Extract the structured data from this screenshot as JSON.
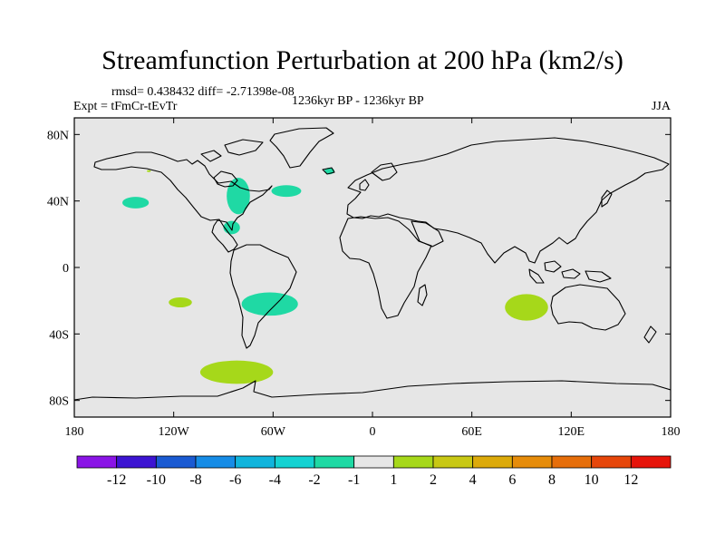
{
  "title": "Streamfunction Perturbation at 200 hPa (km2/s)",
  "stats": "rmsd= 0.438432 diff= -2.71398e-08",
  "experiment": "Expt = tFmCr-tEvTr",
  "period": "1236kyr BP - 1236kyr BP",
  "season": "JJA",
  "colors": {
    "ocean_land_bg": "#e6e6e6",
    "coastline": "#000000",
    "neg_small": "#1fd9a4",
    "pos_small": "#a6d81a"
  },
  "chart_data": {
    "type": "map-contour",
    "projection": "cylindrical-equidistant",
    "lon_range": [
      -180,
      180
    ],
    "lat_range": [
      -90,
      90
    ],
    "x_ticks": [
      {
        "lon": -180,
        "label": "180"
      },
      {
        "lon": -120,
        "label": "120W"
      },
      {
        "lon": -60,
        "label": "60W"
      },
      {
        "lon": 0,
        "label": "0"
      },
      {
        "lon": 60,
        "label": "60E"
      },
      {
        "lon": 120,
        "label": "120E"
      },
      {
        "lon": 180,
        "label": "180"
      }
    ],
    "y_ticks": [
      {
        "lat": 80,
        "label": "80N"
      },
      {
        "lat": 40,
        "label": "40N"
      },
      {
        "lat": 0,
        "label": "0"
      },
      {
        "lat": -40,
        "label": "40S"
      },
      {
        "lat": -80,
        "label": "80S"
      }
    ],
    "colorbar": {
      "colors": [
        "#8a14e6",
        "#3c14d2",
        "#1a5ad2",
        "#168ce6",
        "#10b4dc",
        "#14d2d2",
        "#1fd9a4",
        "#e6e6e6",
        "#a6d81a",
        "#c8c814",
        "#dcaa0a",
        "#e68c0a",
        "#e66e0a",
        "#e6460a",
        "#e6140a"
      ],
      "labels": [
        "-12",
        "-10",
        "-8",
        "-6",
        "-4",
        "-2",
        "-1",
        "1",
        "2",
        "4",
        "6",
        "8",
        "10",
        "12"
      ]
    },
    "anomalies": [
      {
        "lon": -143,
        "lat": 39,
        "rlon": 8,
        "rlat": 3.5,
        "value": -1.5
      },
      {
        "lon": -81,
        "lat": 43,
        "rlon": 7,
        "rlat": 11,
        "value": -1.5
      },
      {
        "lon": -85,
        "lat": 24,
        "rlon": 5,
        "rlat": 4,
        "value": -1.5
      },
      {
        "lon": -52,
        "lat": 46,
        "rlon": 9,
        "rlat": 3.5,
        "value": -1.5
      },
      {
        "lon": -26,
        "lat": 58,
        "rlon": 3,
        "rlat": 2,
        "value": -1.5
      },
      {
        "lon": -62,
        "lat": -22,
        "rlon": 17,
        "rlat": 7,
        "value": -1.5
      },
      {
        "lon": -116,
        "lat": -21,
        "rlon": 7,
        "rlat": 3,
        "value": 1.5
      },
      {
        "lon": 93,
        "lat": -24,
        "rlon": 13,
        "rlat": 8,
        "value": 1.5
      },
      {
        "lon": -82,
        "lat": -63,
        "rlon": 22,
        "rlat": 7,
        "value": 1.5
      },
      {
        "lon": -135,
        "lat": 58,
        "rlon": 1.2,
        "rlat": 0.6,
        "value": 1.5
      }
    ]
  }
}
